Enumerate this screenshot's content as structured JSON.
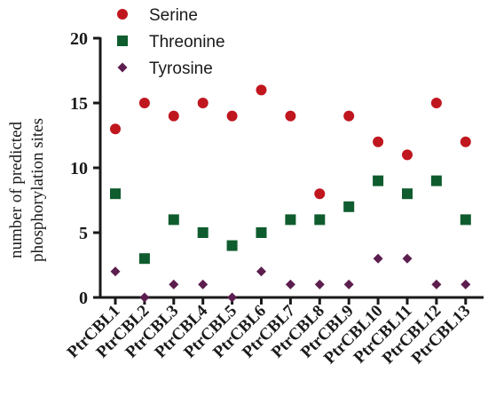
{
  "chart_data": {
    "type": "scatter",
    "categories": [
      "PtrCBL1",
      "PtrCBL2",
      "PtrCBL3",
      "PtrCBL4",
      "PtrCBL5",
      "PtrCBL6",
      "PtrCBL7",
      "PtrCBL8",
      "PtrCBL9",
      "PtrCBL10",
      "PtrCBL11",
      "PtrCBL12",
      "PtrCBL13"
    ],
    "series": [
      {
        "name": "Serine",
        "color": "#c0161e",
        "marker": "circle",
        "values": [
          13,
          15,
          14,
          15,
          14,
          16,
          14,
          8,
          14,
          12,
          11,
          15,
          12
        ]
      },
      {
        "name": "Threonine",
        "color": "#0f5c2e",
        "marker": "square",
        "values": [
          8,
          3,
          6,
          5,
          4,
          5,
          6,
          6,
          7,
          9,
          8,
          9,
          6
        ]
      },
      {
        "name": "Tyrosine",
        "color": "#5c1e4e",
        "marker": "diamond",
        "values": [
          2,
          0,
          1,
          1,
          0,
          2,
          1,
          1,
          1,
          3,
          3,
          1,
          1
        ]
      }
    ],
    "ylabel_lines": [
      "number of predicted",
      "phosphorylation sites"
    ],
    "xlabel": "",
    "ylim": [
      0,
      20
    ],
    "yticks": [
      0,
      5,
      10,
      15,
      20
    ],
    "grid": false,
    "legend_position": "top"
  }
}
